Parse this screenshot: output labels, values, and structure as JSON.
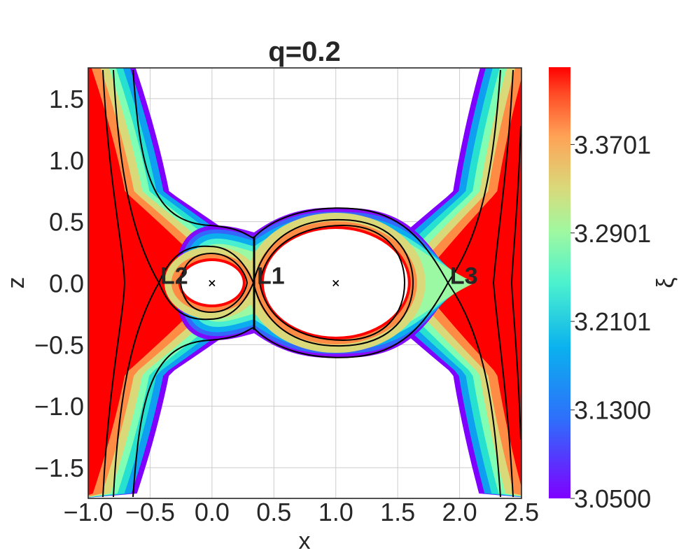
{
  "chart_data": {
    "type": "contour",
    "title": "q=0.2",
    "xlabel": "x",
    "ylabel": "z",
    "xlim": [
      -1.0,
      2.5
    ],
    "ylim": [
      -1.75,
      1.75
    ],
    "xticks": [
      "−1.0",
      "−0.5",
      "0.0",
      "0.5",
      "1.0",
      "1.5",
      "2.0",
      "2.5"
    ],
    "xtick_values": [
      -1.0,
      -0.5,
      0.0,
      0.5,
      1.0,
      1.5,
      2.0,
      2.5
    ],
    "yticks": [
      "1.5",
      "1.0",
      "0.5",
      "0.0",
      "−0.5",
      "−1.0",
      "−1.5"
    ],
    "ytick_values": [
      1.5,
      1.0,
      0.5,
      0.0,
      -0.5,
      -1.0,
      -1.5
    ],
    "grid": true,
    "mass_ratio": 0.2,
    "masses": [
      {
        "x": 0.0,
        "z": 0.0
      },
      {
        "x": 1.0,
        "z": 0.0
      }
    ],
    "lagrange_points": [
      {
        "name": "L1",
        "x": 0.34,
        "z": 0.0
      },
      {
        "name": "L2",
        "x": -0.44,
        "z": 0.0
      },
      {
        "name": "L3",
        "x": 1.9,
        "z": 0.0
      }
    ],
    "divider_x": 0.34,
    "colorbar": {
      "label": "ξ",
      "min": 3.05,
      "max": 3.44,
      "colormap": "rainbow",
      "ticks": [
        3.05,
        3.13,
        3.2101,
        3.2901,
        3.3701
      ],
      "tick_labels": [
        "3.0500",
        "3.1300",
        "3.2101",
        "3.2901",
        "3.3701"
      ]
    },
    "contour_levels": [
      3.09,
      3.25,
      3.42
    ],
    "colors": {
      "low": "#7f00ff",
      "blue": "#0f9ff0",
      "cyan": "#26e0d0",
      "green": "#80ffb4",
      "yellow": "#d9d97a",
      "orange": "#ff8c45",
      "high": "#ff0000",
      "contour": "#000000",
      "grid": "#cccccc"
    }
  }
}
